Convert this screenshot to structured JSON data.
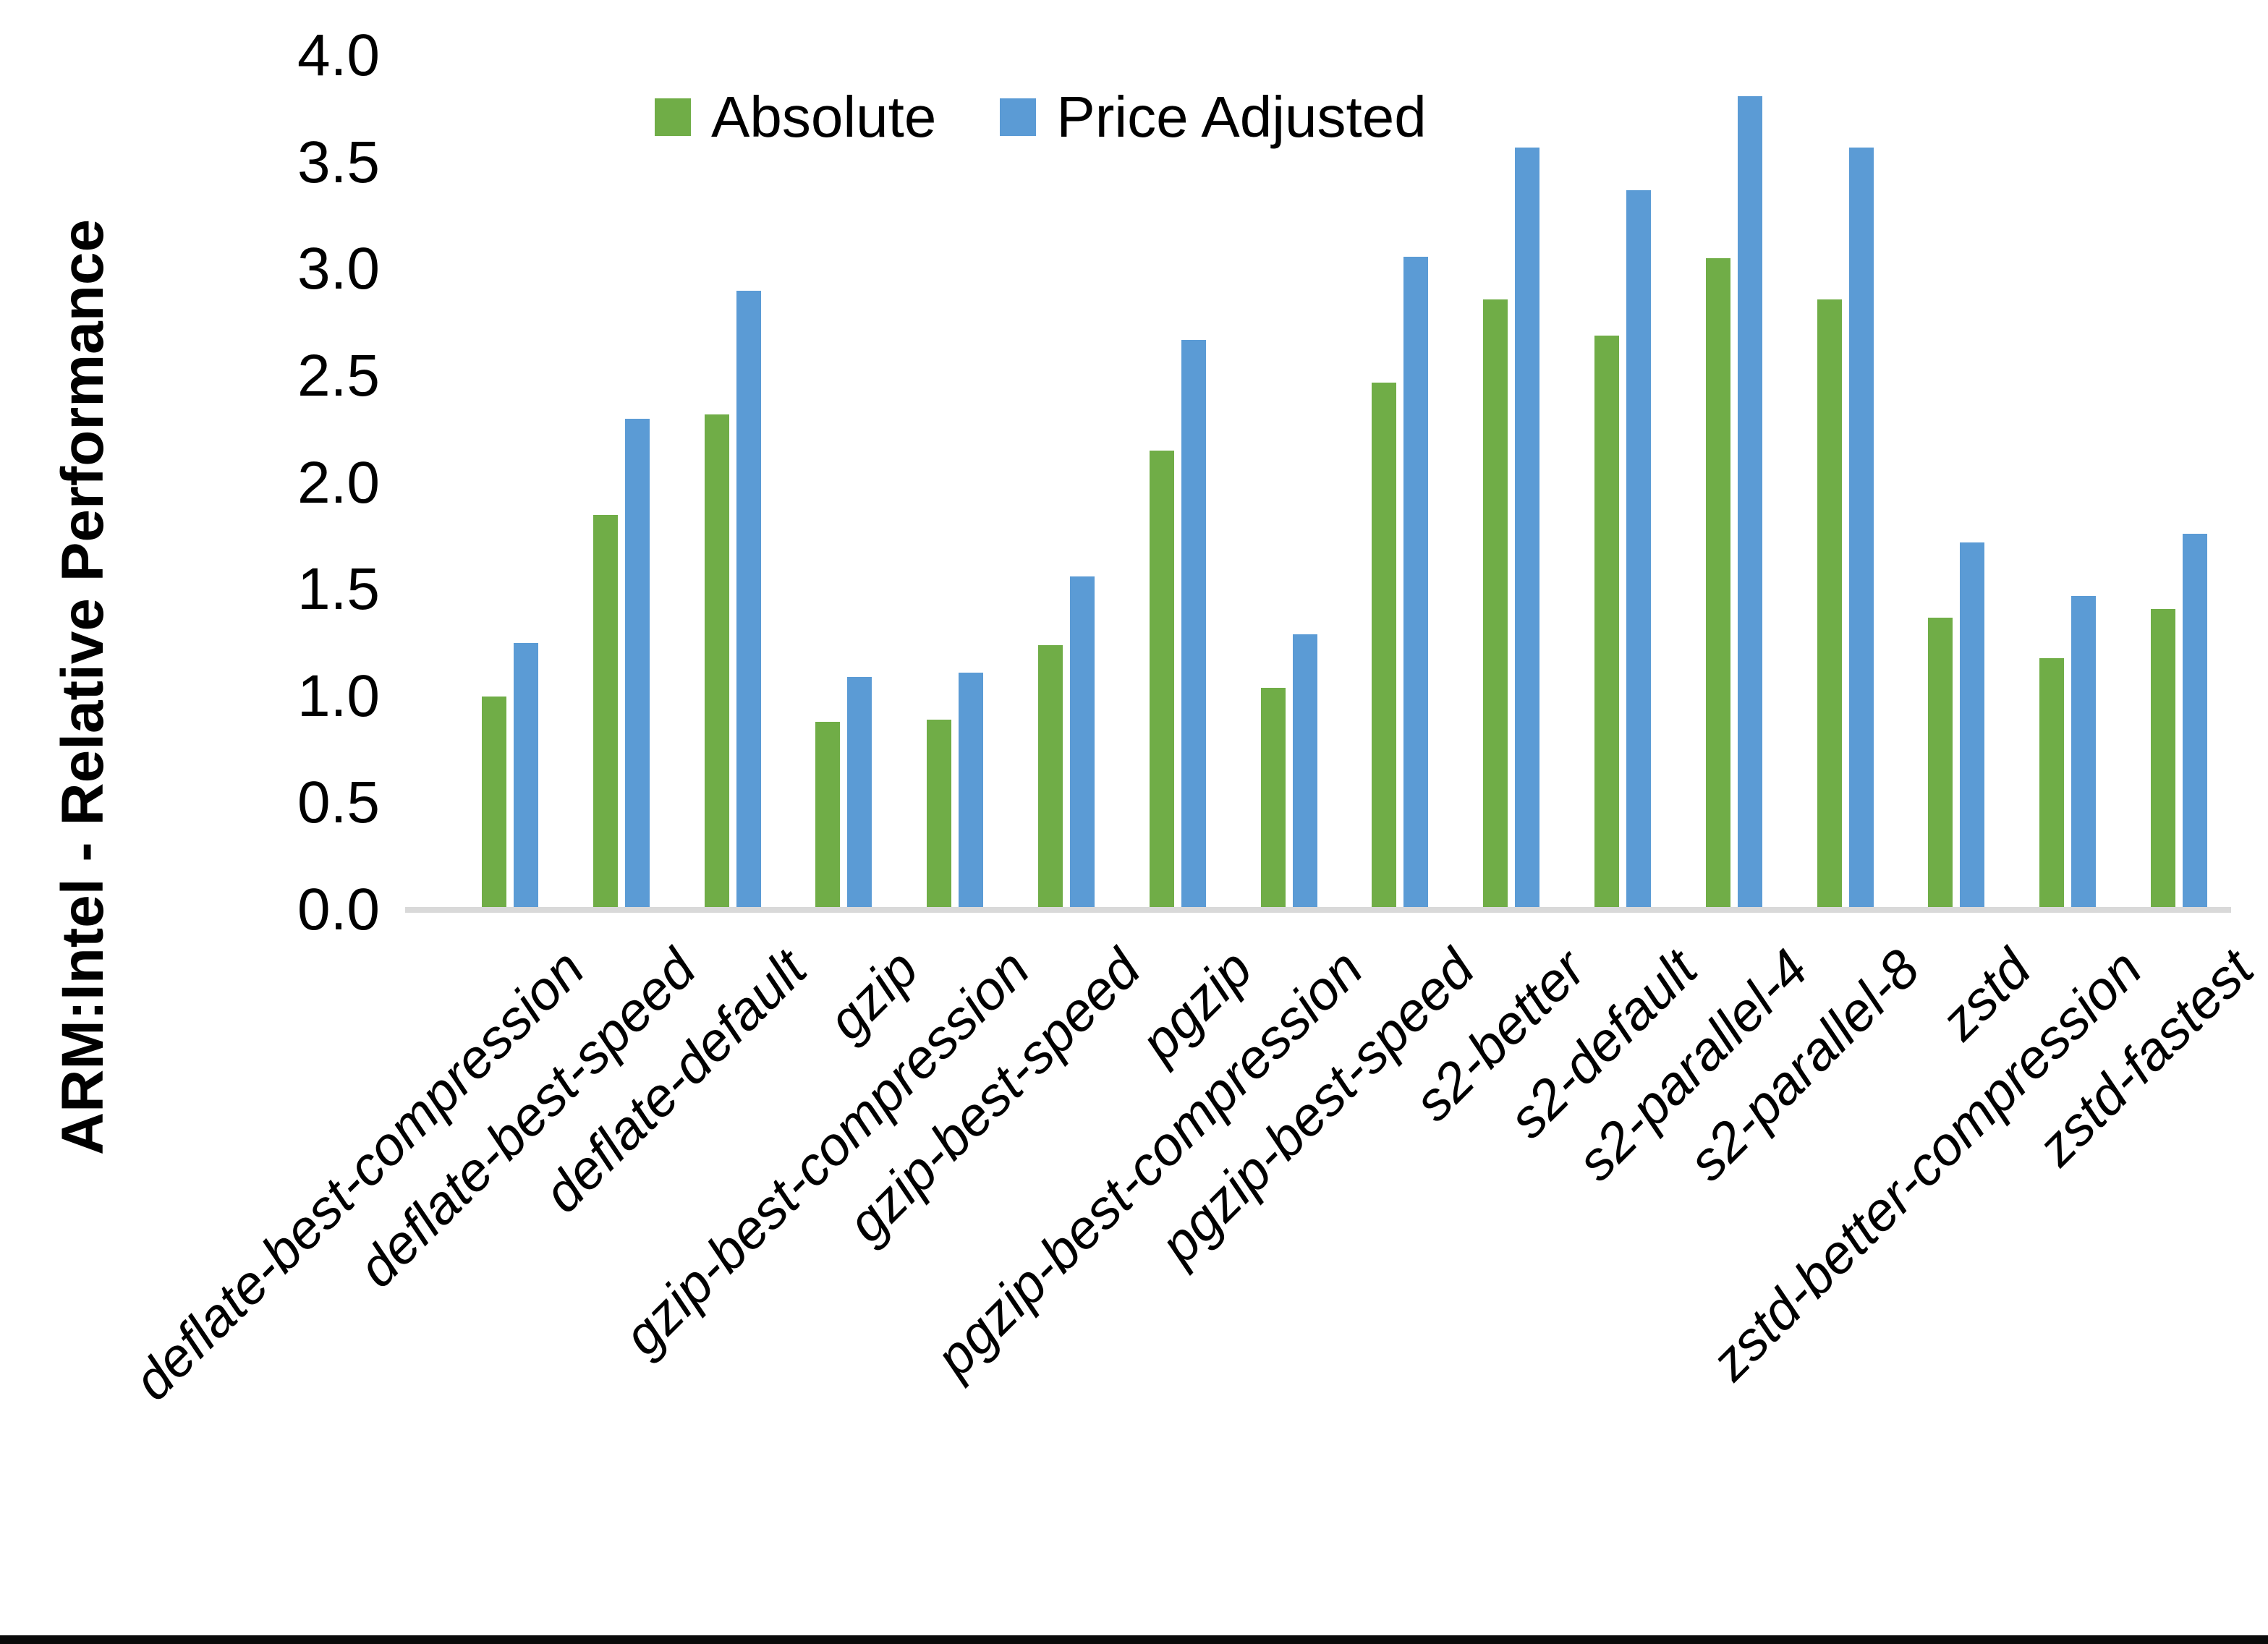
{
  "chart_data": {
    "type": "bar",
    "title": "",
    "ylabel": "ARM:Intel - Relative Performance",
    "xlabel": "",
    "ylim": [
      0.0,
      4.0
    ],
    "ytick_step": 0.5,
    "y_tick_labels": [
      "0.0",
      "0.5",
      "1.0",
      "1.5",
      "2.0",
      "2.5",
      "3.0",
      "3.5",
      "4.0"
    ],
    "grid": false,
    "legend_position": "top-center",
    "categories": [
      "deflate-best-compression",
      "deflate-best-speed",
      "deflate-default",
      "gzip",
      "gzip-best-compression",
      "gzip-best-speed",
      "pgzip",
      "pgzip-best-compression",
      "pgzip-best-speed",
      "s2-better",
      "s2-default",
      "s2-parallel-4",
      "s2-parallel-8",
      "zstd",
      "zstd-better-compression",
      "zstd-fastest"
    ],
    "series": [
      {
        "name": "Absolute",
        "color": "#70AD47",
        "values": [
          1.0,
          1.85,
          2.32,
          0.88,
          0.89,
          1.24,
          2.15,
          1.04,
          2.47,
          2.86,
          2.69,
          3.05,
          2.86,
          1.37,
          1.18,
          1.41
        ]
      },
      {
        "name": "Price Adjusted",
        "color": "#5B9BD5",
        "values": [
          1.25,
          2.3,
          2.9,
          1.09,
          1.11,
          1.56,
          2.67,
          1.29,
          3.06,
          3.57,
          3.37,
          3.81,
          3.57,
          1.72,
          1.47,
          1.76
        ]
      }
    ],
    "axis_line_color": "#D9D9D9",
    "bottom_border_color": "#0A0A0A"
  }
}
